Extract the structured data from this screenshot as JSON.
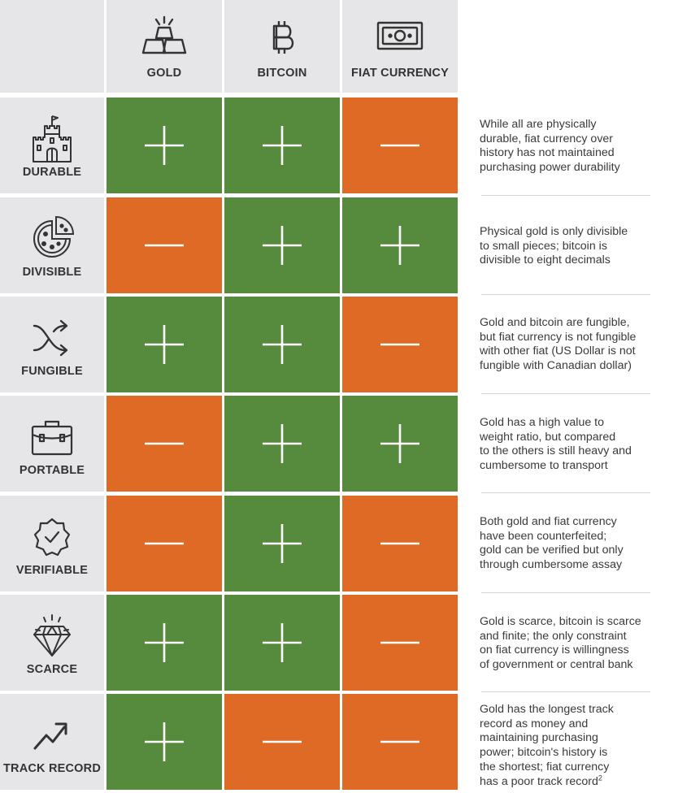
{
  "colors": {
    "positive": "#568a3c",
    "negative": "#de6a26",
    "label_bg": "#e6e6e8"
  },
  "columns": [
    {
      "label": "GOLD",
      "icon": "gold-bars-icon"
    },
    {
      "label": "BITCOIN",
      "icon": "bitcoin-icon"
    },
    {
      "label": "FIAT CURRENCY",
      "icon": "banknote-icon"
    }
  ],
  "rows": [
    {
      "label": "DURABLE",
      "icon": "castle-icon",
      "marks": [
        "+",
        "+",
        "-"
      ],
      "lines": [
        "While all are physically",
        "durable, fiat currency over",
        "history has not maintained",
        "purchasing power durability"
      ]
    },
    {
      "label": "DIVISIBLE",
      "icon": "pizza-icon",
      "marks": [
        "-",
        "+",
        "+"
      ],
      "lines": [
        "Physical gold is only divisible",
        "to small pieces; bitcoin is",
        "divisible to eight decimals"
      ]
    },
    {
      "label": "FUNGIBLE",
      "icon": "shuffle-icon",
      "marks": [
        "+",
        "+",
        "-"
      ],
      "lines": [
        "Gold and bitcoin are fungible,",
        "but fiat currency is not fungible",
        "with other fiat (US Dollar is not",
        "fungible with Canadian dollar)"
      ]
    },
    {
      "label": "PORTABLE",
      "icon": "briefcase-icon",
      "marks": [
        "-",
        "+",
        "+"
      ],
      "lines": [
        "Gold has a high value to",
        "weight ratio, but compared",
        "to the others is still heavy and",
        "cumbersome to transport"
      ]
    },
    {
      "label": "VERIFIABLE",
      "icon": "verified-badge-icon",
      "marks": [
        "-",
        "+",
        "-"
      ],
      "lines": [
        "Both gold and fiat currency",
        "have been counterfeited;",
        "gold can be verified but only",
        "through cumbersome assay"
      ]
    },
    {
      "label": "SCARCE",
      "icon": "diamond-icon",
      "marks": [
        "+",
        "+",
        "-"
      ],
      "lines": [
        "Gold is scarce, bitcoin is scarce",
        "and finite; the only constraint",
        "on fiat currency is willingness",
        "of government or central bank"
      ]
    },
    {
      "label": "TRACK RECORD",
      "icon": "trend-up-icon",
      "marks": [
        "+",
        "-",
        "-"
      ],
      "lines": [
        "Gold has the longest track",
        "record as money and",
        "maintaining purchasing",
        "power; bitcoin's history is",
        "the shortest; fiat currency",
        "has a poor track record"
      ],
      "footnote": "2"
    }
  ]
}
